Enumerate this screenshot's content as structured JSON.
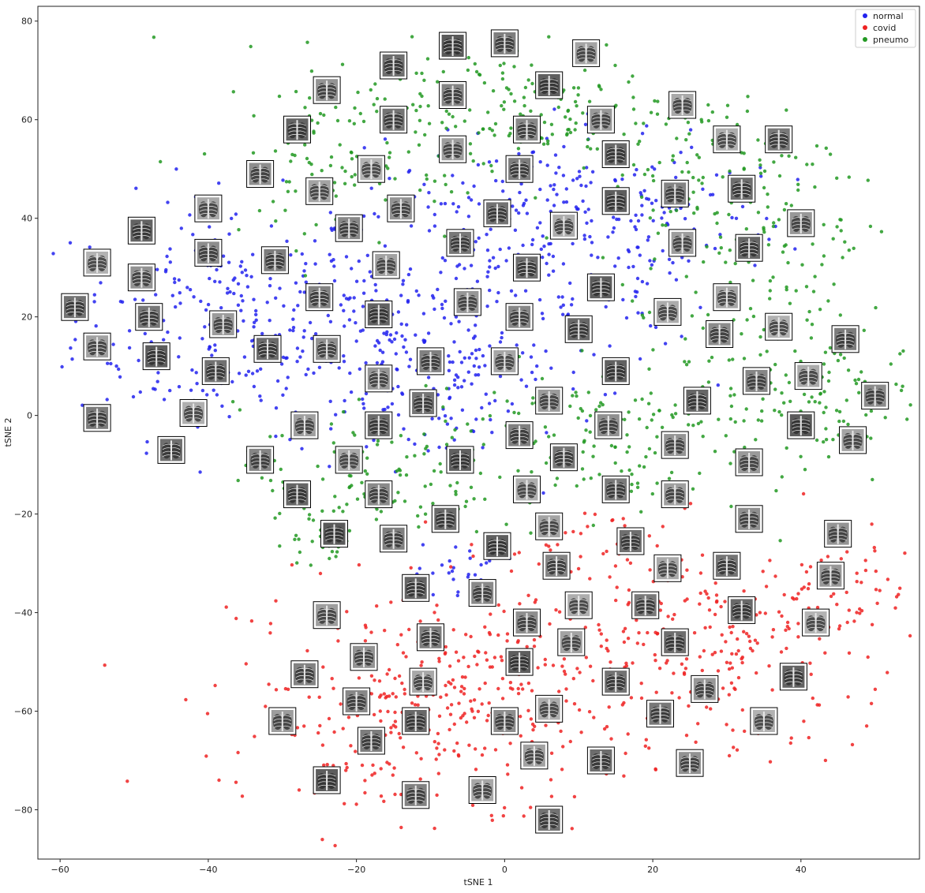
{
  "chart_data": {
    "type": "scatter",
    "title": "",
    "xlabel": "tSNE 1",
    "ylabel": "tSNE 2",
    "xlim": [
      -63,
      56
    ],
    "ylim": [
      -90,
      83
    ],
    "x_ticks": [
      -60,
      -40,
      -20,
      0,
      20,
      40
    ],
    "y_ticks": [
      -80,
      -60,
      -40,
      -20,
      0,
      20,
      40,
      60,
      80
    ],
    "grid": false,
    "legend_position": "top-right",
    "series": [
      {
        "name": "normal",
        "color": "#2222ee"
      },
      {
        "name": "covid",
        "color": "#ee2222"
      },
      {
        "name": "pneumo",
        "color": "#229922"
      }
    ],
    "thumbnail_kind": "chest x-ray image",
    "thumbnails": [
      [
        -7,
        75
      ],
      [
        0,
        75.5
      ],
      [
        11,
        73.5
      ],
      [
        -15,
        71
      ],
      [
        -24,
        66
      ],
      [
        6,
        67
      ],
      [
        -7,
        65
      ],
      [
        24,
        63
      ],
      [
        -15,
        60
      ],
      [
        13,
        60
      ],
      [
        -28,
        58
      ],
      [
        3,
        58
      ],
      [
        30,
        56
      ],
      [
        37,
        56
      ],
      [
        -7,
        54
      ],
      [
        15,
        53
      ],
      [
        -33,
        49
      ],
      [
        -18,
        50
      ],
      [
        2,
        50
      ],
      [
        -25,
        45.5
      ],
      [
        32,
        46
      ],
      [
        -14,
        42
      ],
      [
        15,
        43.5
      ],
      [
        23,
        45
      ],
      [
        -40,
        42
      ],
      [
        -1,
        41
      ],
      [
        40,
        39
      ],
      [
        -49,
        37.5
      ],
      [
        -21,
        38
      ],
      [
        8,
        38.5
      ],
      [
        -6,
        35
      ],
      [
        24,
        35
      ],
      [
        33,
        34
      ],
      [
        -40,
        33
      ],
      [
        -55,
        31
      ],
      [
        -31,
        31.5
      ],
      [
        -16,
        30.5
      ],
      [
        3,
        30
      ],
      [
        -49,
        28
      ],
      [
        13,
        26
      ],
      [
        -25,
        24
      ],
      [
        30,
        24
      ],
      [
        -58,
        22
      ],
      [
        -5,
        23
      ],
      [
        -17,
        20.5
      ],
      [
        2,
        20
      ],
      [
        22,
        21
      ],
      [
        -48,
        20
      ],
      [
        -38,
        18.5
      ],
      [
        10,
        17.5
      ],
      [
        29,
        16.5
      ],
      [
        37,
        18
      ],
      [
        46,
        15.5
      ],
      [
        -55,
        14
      ],
      [
        -32,
        13.5
      ],
      [
        -24,
        13.5
      ],
      [
        -47,
        12
      ],
      [
        -10,
        11
      ],
      [
        0,
        11
      ],
      [
        -39,
        9
      ],
      [
        -17,
        7.5
      ],
      [
        15,
        9
      ],
      [
        34,
        7
      ],
      [
        41,
        8
      ],
      [
        -11,
        2.5
      ],
      [
        6,
        3
      ],
      [
        26,
        3
      ],
      [
        50,
        4
      ],
      [
        -42,
        0.5
      ],
      [
        -55,
        -0.5
      ],
      [
        -27,
        -2
      ],
      [
        -17,
        -2
      ],
      [
        14,
        -2
      ],
      [
        40,
        -2
      ],
      [
        2,
        -4
      ],
      [
        47,
        -5
      ],
      [
        -45,
        -7
      ],
      [
        23,
        -6
      ],
      [
        -6,
        -9
      ],
      [
        -33,
        -9
      ],
      [
        -21,
        -9
      ],
      [
        8,
        -8.5
      ],
      [
        33,
        -9.5
      ],
      [
        -28,
        -16
      ],
      [
        -17,
        -16
      ],
      [
        3,
        -15
      ],
      [
        15,
        -15
      ],
      [
        23,
        -16
      ],
      [
        -8,
        -21
      ],
      [
        33,
        -21
      ],
      [
        -23,
        -24
      ],
      [
        -15,
        -25
      ],
      [
        6,
        -22.5
      ],
      [
        17,
        -25.5
      ],
      [
        45,
        -24
      ],
      [
        -1,
        -26.5
      ],
      [
        7,
        -30.5
      ],
      [
        22,
        -31
      ],
      [
        30,
        -30.5
      ],
      [
        44,
        -32.5
      ],
      [
        -12,
        -35
      ],
      [
        -3,
        -36
      ],
      [
        10,
        -38.5
      ],
      [
        19,
        -38.5
      ],
      [
        -24,
        -40.5
      ],
      [
        32,
        -39.5
      ],
      [
        3,
        -42
      ],
      [
        42,
        -42
      ],
      [
        -10,
        -45
      ],
      [
        9,
        -46
      ],
      [
        23,
        -46
      ],
      [
        -19,
        -49
      ],
      [
        2,
        -50
      ],
      [
        -27,
        -52.5
      ],
      [
        -11,
        -54
      ],
      [
        15,
        -54
      ],
      [
        27,
        -55.5
      ],
      [
        39,
        -53
      ],
      [
        -20,
        -58
      ],
      [
        6,
        -59.5
      ],
      [
        21,
        -60.5
      ],
      [
        -30,
        -62
      ],
      [
        -12,
        -62
      ],
      [
        0,
        -62
      ],
      [
        35,
        -62
      ],
      [
        -18,
        -66
      ],
      [
        4,
        -69
      ],
      [
        13,
        -70
      ],
      [
        25,
        -70.5
      ],
      [
        -24,
        -74
      ],
      [
        -12,
        -77
      ],
      [
        -3,
        -76
      ],
      [
        6,
        -82
      ]
    ]
  }
}
